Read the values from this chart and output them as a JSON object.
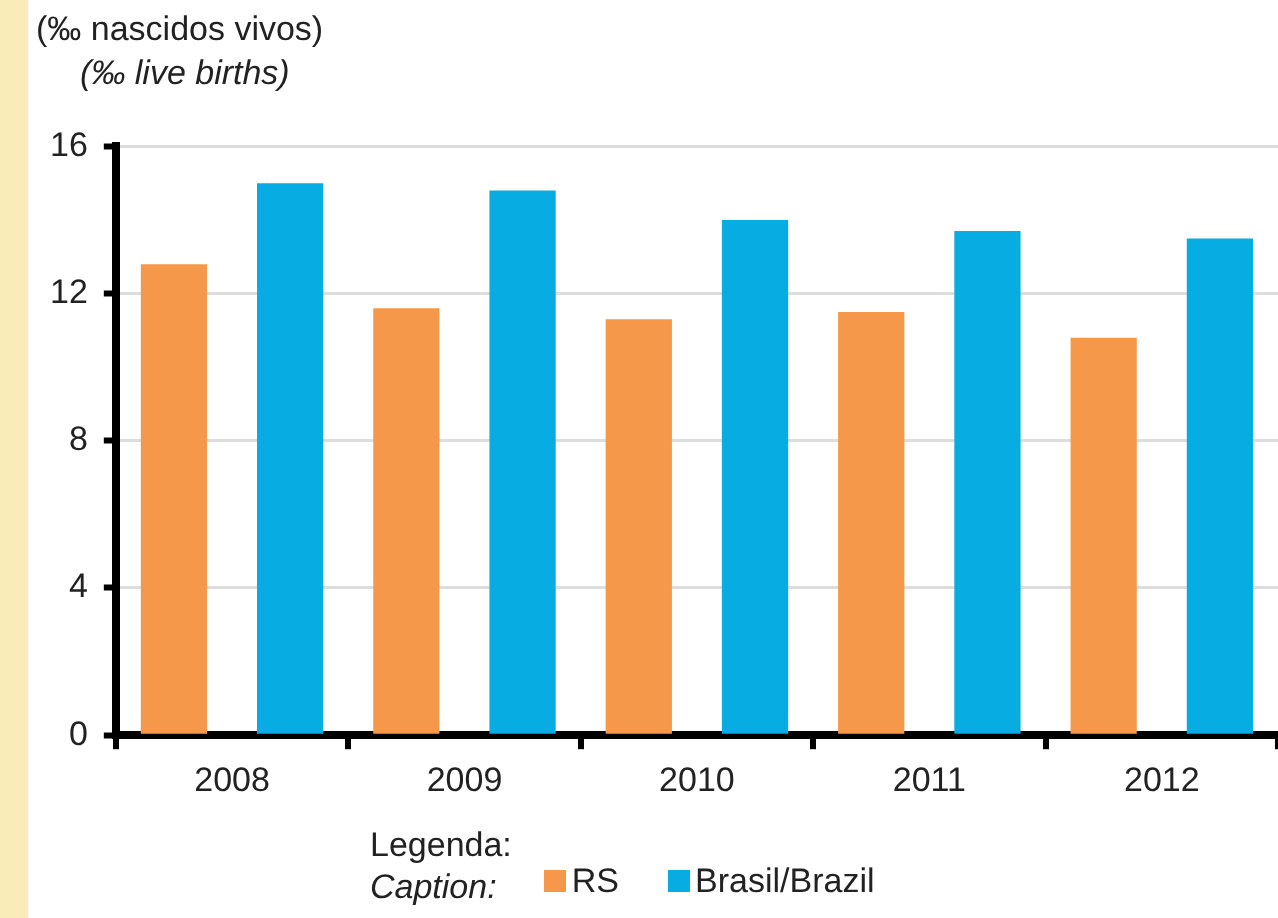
{
  "chart_data": {
    "type": "bar",
    "ylabel": "(‰ nascidos vivos)\n(‰  live births)",
    "legend_title": "Legenda:\nCaption:",
    "categories": [
      "2008",
      "2009",
      "2010",
      "2011",
      "2012"
    ],
    "series": [
      {
        "name": "RS",
        "color": "#f5984a",
        "values": [
          12.8,
          11.6,
          11.3,
          11.5,
          10.8
        ]
      },
      {
        "name": "Brasil/Brazil",
        "color": "#07ade2",
        "values": [
          15.0,
          14.8,
          14.0,
          13.7,
          13.5
        ]
      }
    ],
    "ylim": [
      0,
      16
    ],
    "yticks": [
      0,
      4,
      8,
      12,
      16
    ],
    "grid": "y",
    "legend": "bottom"
  }
}
